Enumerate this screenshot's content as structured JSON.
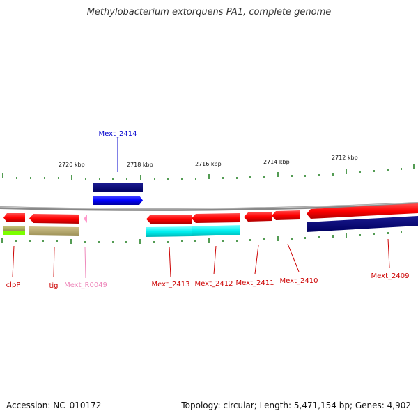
{
  "title": "Methylobacterium extorquens PA1, complete genome",
  "footer": {
    "accession": "Accession: NC_010172",
    "summary": "Topology: circular; Length: 5,471,154 bp; Genes: 4,902"
  },
  "scale_labels": [
    "2720 kbp",
    "2718 kbp",
    "2716 kbp",
    "2714 kbp",
    "2712 kbp"
  ],
  "genes": [
    {
      "name": "Mext_2414",
      "color": "#0000cc"
    },
    {
      "name": "clpP",
      "color": "#cc0000"
    },
    {
      "name": "tig",
      "color": "#cc0000"
    },
    {
      "name": "Mext_R0049",
      "color": "#ee88bb"
    },
    {
      "name": "Mext_2413",
      "color": "#cc0000"
    },
    {
      "name": "Mext_2412",
      "color": "#cc0000"
    },
    {
      "name": "Mext_2411",
      "color": "#cc0000"
    },
    {
      "name": "Mext_2410",
      "color": "#cc0000"
    },
    {
      "name": "Mext_2409",
      "color": "#cc0000"
    }
  ]
}
